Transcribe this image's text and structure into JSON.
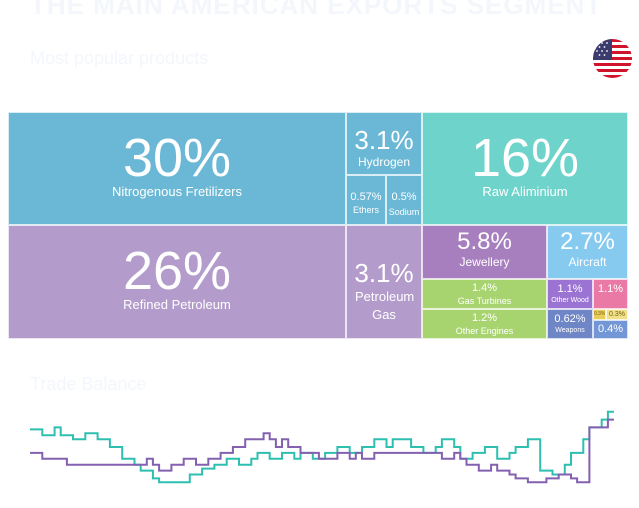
{
  "header": {
    "title": "THE MAIN AMERICAN EXPORTS SEGMENT",
    "subtitle": "Most popular products",
    "section": "Trade Balance"
  },
  "flag": {
    "icon": "us-flag-icon"
  },
  "chart_data": [
    {
      "type": "treemap",
      "items": [
        {
          "label": "Nitrogenous Fretilizers",
          "pct": "30%",
          "color": "#6ab8d5"
        },
        {
          "label": "Hydrogen",
          "pct": "3.1%",
          "color": "#6ab8d5"
        },
        {
          "label": "Ethers",
          "pct": "0.57%",
          "color": "#6ab8d5"
        },
        {
          "label": "Sodium",
          "pct": "0.5%",
          "color": "#6ab8d5"
        },
        {
          "label": "Raw Aliminium",
          "pct": "16%",
          "color": "#6dd3cb"
        },
        {
          "label": "Refined Petroleum",
          "pct": "26%",
          "color": "#b39ccb"
        },
        {
          "label": "Petroleum Gas",
          "pct": "3.1%",
          "color": "#b39ccb"
        },
        {
          "label": "Jewellery",
          "pct": "5.8%",
          "color": "#a77fbf"
        },
        {
          "label": "Aircraft",
          "pct": "2.7%",
          "color": "#86caf0"
        },
        {
          "label": "Gas Turbines",
          "pct": "1.4%",
          "color": "#a8d46f"
        },
        {
          "label": "Other Engines",
          "pct": "1.2%",
          "color": "#a8d46f"
        },
        {
          "label": "Other Wood",
          "pct": "1.1%",
          "color": "#9b73d2"
        },
        {
          "label": "",
          "pct": "1.1%",
          "color": "#ea7aa5"
        },
        {
          "label": "Weapons",
          "pct": "0.62%",
          "color": "#6e85c6"
        },
        {
          "label": "",
          "pct": "0.4%",
          "color": "#7396d6"
        },
        {
          "label": "",
          "pct": "0.3%",
          "color": "#e9cd5a"
        },
        {
          "label": "",
          "pct": "0.3%",
          "color": "#f0e08a"
        }
      ]
    },
    {
      "type": "line",
      "x": [
        0,
        1,
        2,
        3,
        4,
        5,
        6,
        7,
        8,
        9,
        10,
        11,
        12,
        13,
        14,
        15,
        16,
        17,
        18,
        19,
        20,
        21,
        22,
        23,
        24,
        25,
        26,
        27,
        28,
        29,
        30,
        31,
        32,
        33,
        34,
        35,
        36,
        37,
        38,
        39,
        40,
        41,
        42,
        43,
        44,
        45,
        46,
        47,
        48,
        49,
        50,
        51,
        52,
        53,
        54,
        55,
        56,
        57,
        58,
        59,
        60,
        61,
        62,
        63,
        64,
        65,
        66,
        67,
        68,
        69,
        70,
        71,
        72,
        73,
        74,
        75,
        76,
        77,
        78,
        79,
        80,
        81,
        82,
        83,
        84,
        85,
        86,
        87,
        88,
        89,
        90,
        91,
        92,
        93,
        94,
        95
      ],
      "series": [
        {
          "color": "#2ebfb0",
          "values": [
            65,
            65,
            62,
            62,
            66,
            62,
            62,
            60,
            60,
            63,
            63,
            60,
            60,
            56,
            56,
            50,
            50,
            47,
            44,
            44,
            40,
            38,
            38,
            38,
            38,
            38,
            42,
            42,
            45,
            45,
            47,
            47,
            50,
            50,
            47,
            47,
            50,
            53,
            53,
            50,
            50,
            53,
            53,
            50,
            53,
            53,
            50,
            50,
            53,
            53,
            56,
            56,
            53,
            53,
            56,
            56,
            60,
            60,
            56,
            60,
            60,
            60,
            56,
            56,
            53,
            53,
            56,
            60,
            60,
            56,
            50,
            50,
            53,
            53,
            56,
            56,
            50,
            50,
            53,
            56,
            56,
            60,
            60,
            44,
            44,
            42,
            42,
            47,
            53,
            53,
            60,
            66,
            66,
            70,
            74,
            74
          ]
        },
        {
          "color": "#8460b0",
          "values": [
            53,
            53,
            50,
            50,
            50,
            50,
            47,
            47,
            47,
            47,
            47,
            47,
            47,
            47,
            47,
            47,
            47,
            47,
            47,
            50,
            47,
            44,
            44,
            47,
            47,
            50,
            50,
            47,
            47,
            50,
            50,
            53,
            53,
            56,
            56,
            60,
            60,
            60,
            63,
            60,
            56,
            60,
            56,
            56,
            53,
            53,
            53,
            50,
            50,
            50,
            53,
            53,
            50,
            53,
            50,
            50,
            53,
            53,
            53,
            53,
            53,
            53,
            53,
            53,
            53,
            53,
            53,
            50,
            50,
            53,
            50,
            47,
            47,
            44,
            44,
            47,
            44,
            44,
            42,
            40,
            40,
            38,
            38,
            38,
            40,
            40,
            42,
            42,
            40,
            38,
            38,
            66,
            66,
            66,
            70,
            70
          ]
        }
      ]
    }
  ]
}
